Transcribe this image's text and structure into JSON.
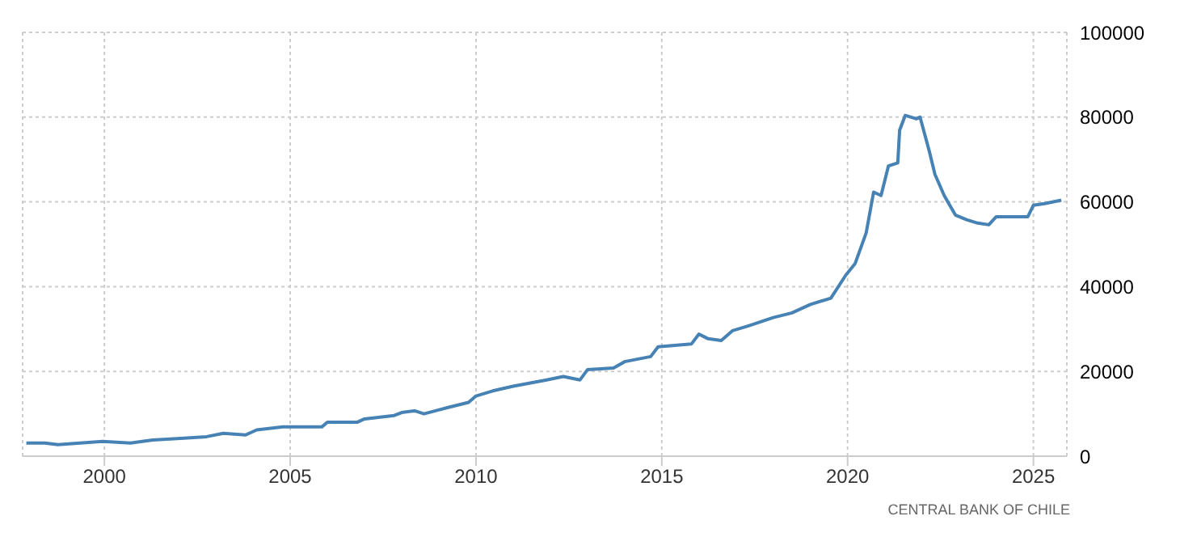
{
  "chart_data": {
    "type": "line",
    "x": [
      1997.9,
      1998.4,
      1998.75,
      1999.95,
      2000.7,
      2001.3,
      2002.05,
      2002.75,
      2003.2,
      2003.8,
      2004.1,
      2004.8,
      2005.85,
      2006.0,
      2006.8,
      2007.0,
      2007.8,
      2008.0,
      2008.35,
      2008.6,
      2008.95,
      2009.25,
      2009.8,
      2010.0,
      2010.45,
      2011.0,
      2011.9,
      2012.35,
      2012.8,
      2013.0,
      2013.7,
      2014.0,
      2014.7,
      2014.9,
      2015.8,
      2016.0,
      2016.25,
      2016.6,
      2016.9,
      2017.35,
      2018.0,
      2018.5,
      2019.0,
      2019.55,
      2019.95,
      2020.2,
      2020.5,
      2020.7,
      2020.9,
      2021.1,
      2021.35,
      2021.4,
      2021.55,
      2021.85,
      2021.95,
      2022.2,
      2022.35,
      2022.6,
      2022.9,
      2023.2,
      2023.5,
      2023.8,
      2024.0,
      2024.4,
      2024.85,
      2025.0,
      2025.3,
      2025.75
    ],
    "series": [
      {
        "color": "#4682b4",
        "values": [
          3100,
          3100,
          2700,
          3500,
          3100,
          3800,
          4200,
          4600,
          5400,
          5000,
          6200,
          6900,
          6900,
          8000,
          8000,
          8800,
          9600,
          10300,
          10700,
          10000,
          10800,
          11500,
          12700,
          14200,
          15400,
          16500,
          18000,
          18800,
          18000,
          20400,
          20800,
          22300,
          23500,
          25800,
          26500,
          28800,
          27700,
          27300,
          29600,
          30800,
          32700,
          33800,
          35800,
          37300,
          42700,
          45400,
          52700,
          62300,
          61500,
          68500,
          69200,
          76900,
          80400,
          79600,
          80000,
          71900,
          66500,
          61500,
          56900,
          55800,
          55000,
          54600,
          56500,
          56500,
          56500,
          59200,
          59600,
          60400
        ]
      }
    ],
    "xlim": [
      1997.8,
      2025.9
    ],
    "xticks": [
      2000,
      2005,
      2010,
      2015,
      2020,
      2025
    ],
    "ylim": [
      0,
      100000
    ],
    "yticks": [
      0,
      20000,
      40000,
      60000,
      80000,
      100000
    ],
    "grid": true,
    "marker": "none",
    "line_style": "solid",
    "annotations": [
      "CENTRAL BANK OF CHILE"
    ]
  }
}
